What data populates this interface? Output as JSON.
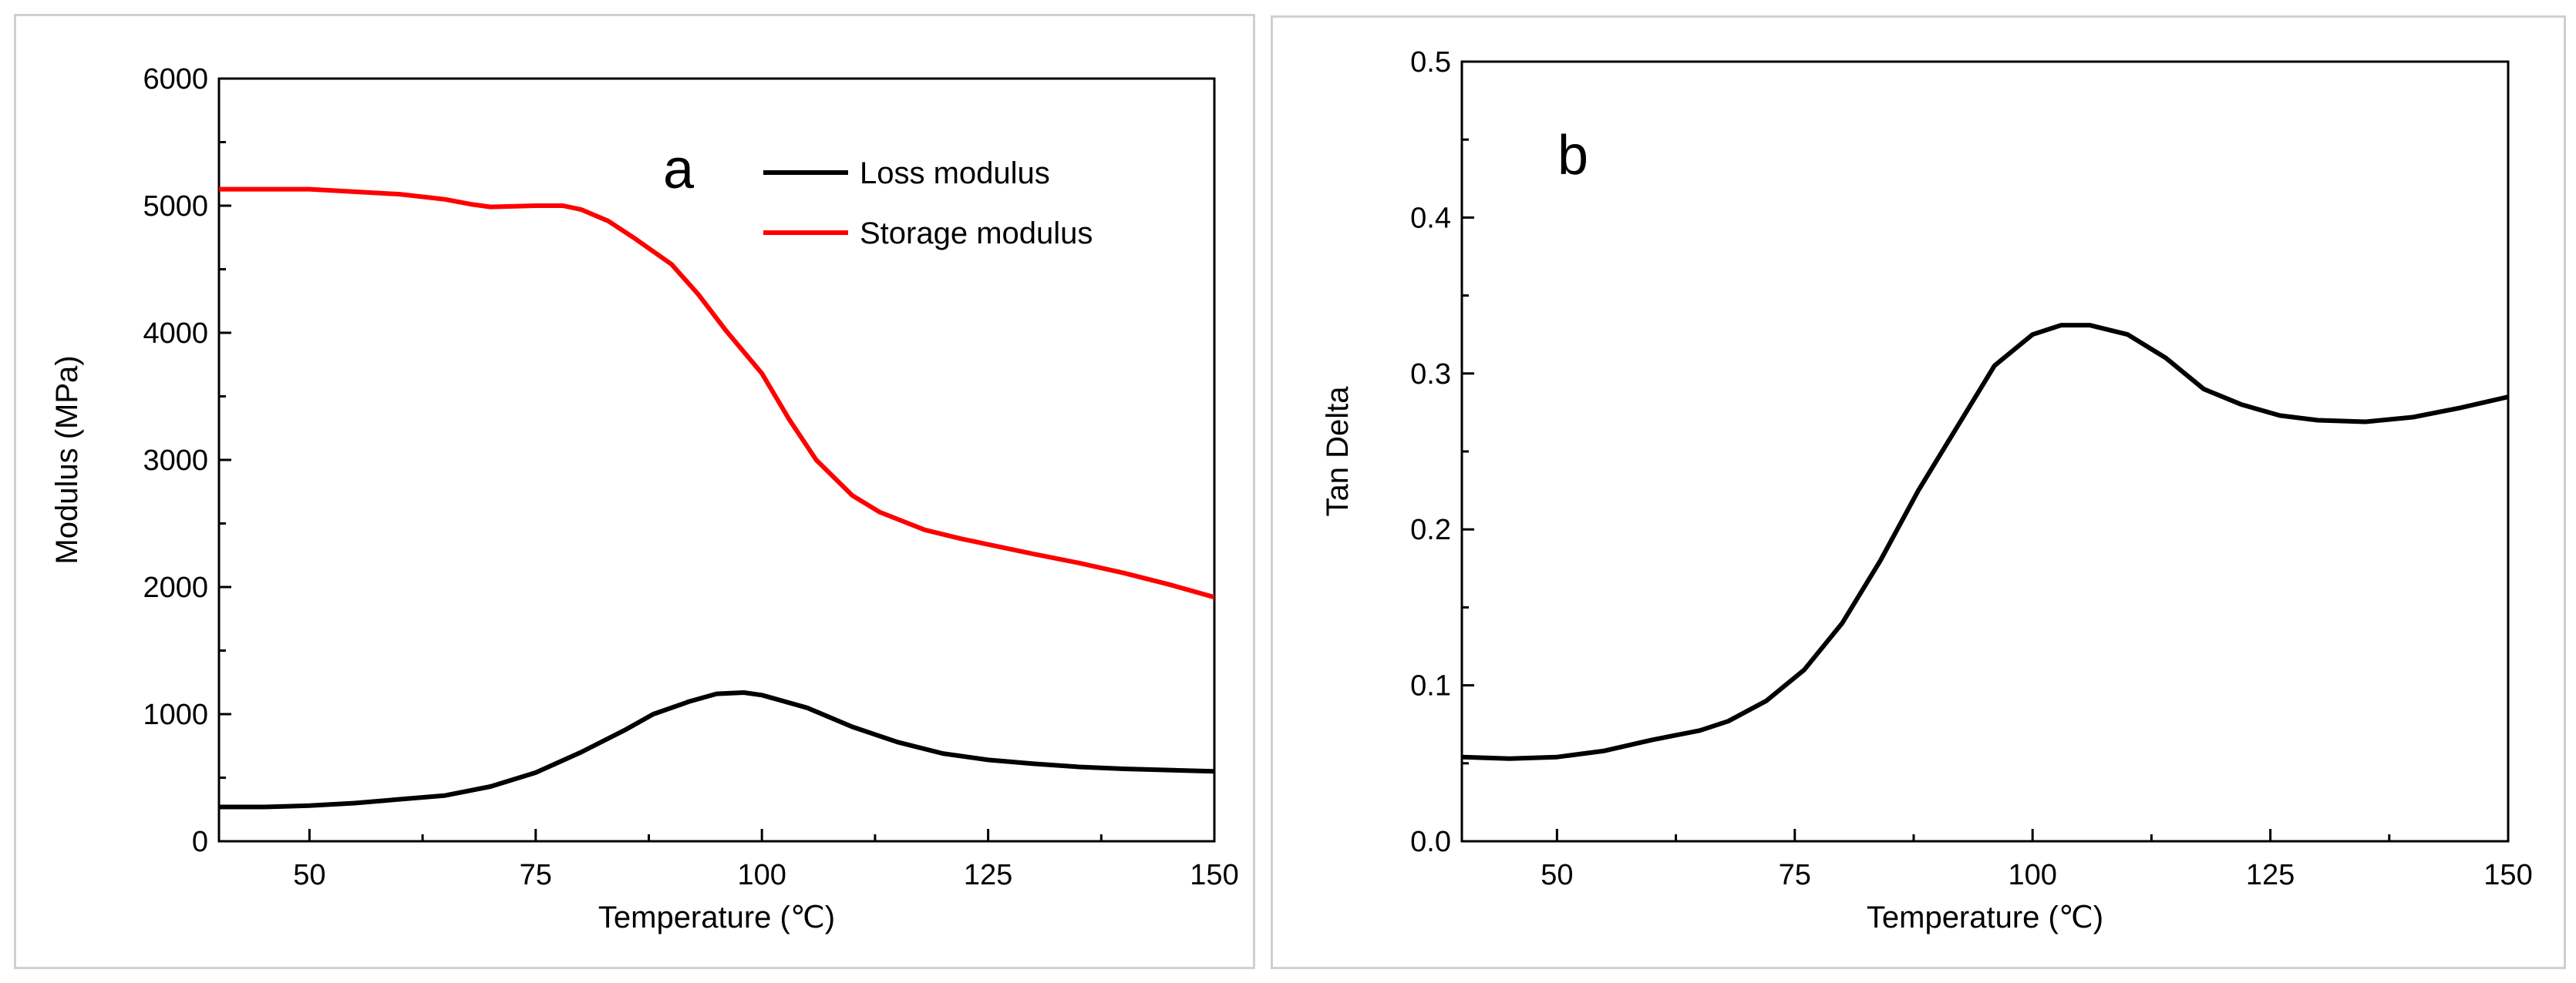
{
  "chart_data": [
    {
      "type": "line",
      "panel_letter": "a",
      "xlabel": "Temperature (℃)",
      "ylabel": "Modulus (MPa)",
      "xlim": [
        40,
        150
      ],
      "ylim": [
        0,
        6000
      ],
      "xticks": [
        50,
        75,
        100,
        125,
        150
      ],
      "yticks": [
        0,
        1000,
        2000,
        3000,
        4000,
        5000,
        6000
      ],
      "legend": "top-right",
      "series": [
        {
          "name": "Loss modulus",
          "color": "#000000",
          "x": [
            40,
            45,
            50,
            55,
            60,
            65,
            70,
            75,
            80,
            85,
            88,
            92,
            95,
            98,
            100,
            105,
            110,
            115,
            120,
            125,
            130,
            135,
            140,
            145,
            150
          ],
          "y": [
            270,
            270,
            280,
            300,
            330,
            360,
            430,
            540,
            700,
            880,
            1000,
            1100,
            1160,
            1170,
            1150,
            1050,
            900,
            780,
            690,
            640,
            610,
            585,
            570,
            560,
            550
          ]
        },
        {
          "name": "Storage modulus",
          "color": "#ff0000",
          "x": [
            40,
            45,
            50,
            55,
            60,
            65,
            68,
            70,
            75,
            78,
            80,
            83,
            86,
            90,
            93,
            96,
            100,
            103,
            106,
            110,
            113,
            118,
            122,
            126,
            130,
            135,
            140,
            145,
            150
          ],
          "y": [
            5130,
            5130,
            5130,
            5110,
            5090,
            5050,
            5010,
            4990,
            5000,
            5000,
            4970,
            4880,
            4740,
            4540,
            4300,
            4020,
            3680,
            3320,
            3000,
            2720,
            2590,
            2450,
            2380,
            2320,
            2260,
            2190,
            2110,
            2020,
            1920
          ]
        }
      ]
    },
    {
      "type": "line",
      "panel_letter": "b",
      "xlabel": "Temperature (℃)",
      "ylabel": "Tan Delta",
      "xlim": [
        40,
        150
      ],
      "ylim": [
        0.0,
        0.5
      ],
      "xticks": [
        50,
        75,
        100,
        125,
        150
      ],
      "yticks": [
        0.0,
        0.1,
        0.2,
        0.3,
        0.4,
        0.5
      ],
      "ytick_labels": [
        "0.0",
        "0.1",
        "0.2",
        "0.3",
        "0.4",
        "0.5"
      ],
      "series": [
        {
          "name": "Tan Delta",
          "color": "#000000",
          "x": [
            40,
            45,
            50,
            55,
            60,
            65,
            68,
            72,
            76,
            80,
            84,
            88,
            92,
            96,
            100,
            103,
            106,
            110,
            114,
            118,
            122,
            126,
            130,
            135,
            140,
            145,
            150
          ],
          "y": [
            0.054,
            0.053,
            0.054,
            0.058,
            0.065,
            0.071,
            0.077,
            0.09,
            0.11,
            0.14,
            0.18,
            0.225,
            0.265,
            0.305,
            0.325,
            0.331,
            0.331,
            0.325,
            0.31,
            0.29,
            0.28,
            0.273,
            0.27,
            0.269,
            0.272,
            0.278,
            0.285
          ]
        }
      ]
    }
  ]
}
